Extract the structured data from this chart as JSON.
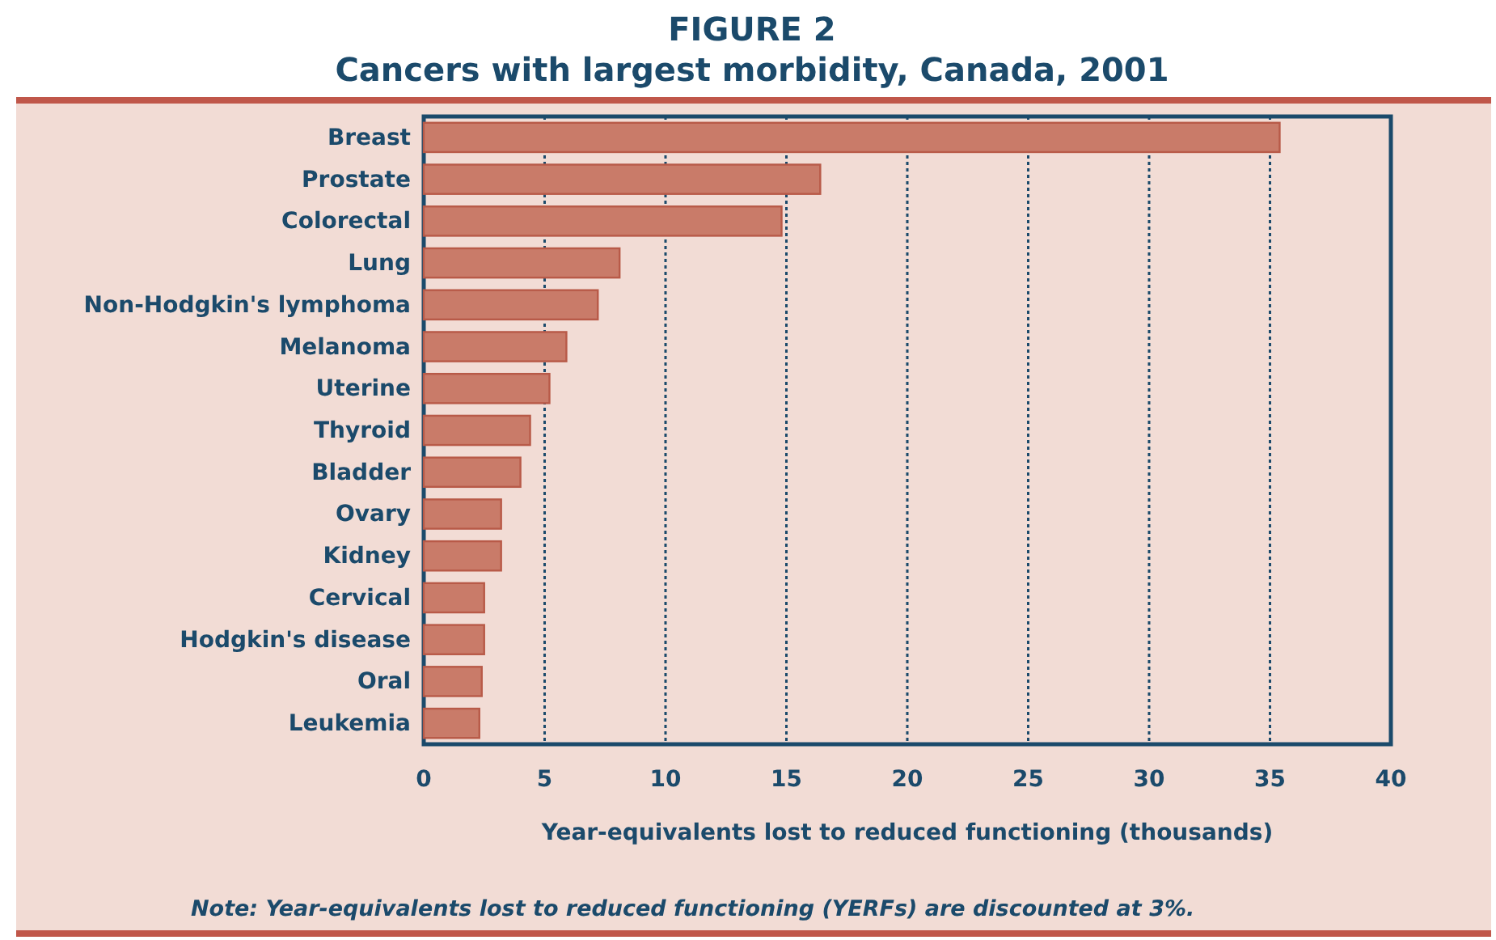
{
  "chart_data": {
    "type": "bar",
    "orientation": "horizontal",
    "title": "FIGURE 2",
    "subtitle": "Cancers with largest morbidity, Canada, 2001",
    "xlabel": "Year-equivalents lost to reduced functioning (thousands)",
    "categories": [
      "Breast",
      "Prostate",
      "Colorectal",
      "Lung",
      "Non-Hodgkin's lymphoma",
      "Melanoma",
      "Uterine",
      "Thyroid",
      "Bladder",
      "Ovary",
      "Kidney",
      "Cervical",
      "Hodgkin's disease",
      "Oral",
      "Leukemia"
    ],
    "values": [
      35.4,
      16.4,
      14.8,
      8.1,
      7.2,
      5.9,
      5.2,
      4.4,
      4.0,
      3.2,
      3.2,
      2.5,
      2.5,
      2.4,
      2.3
    ],
    "color": "#c97b69",
    "xlim": [
      0,
      40
    ],
    "xticks": [
      0,
      5,
      10,
      15,
      20,
      25,
      30,
      35,
      40
    ],
    "grid": "x",
    "annotations": [
      "Note: Year-equivalents lost to reduced functioning (YERFs) are discounted at 3%."
    ]
  }
}
